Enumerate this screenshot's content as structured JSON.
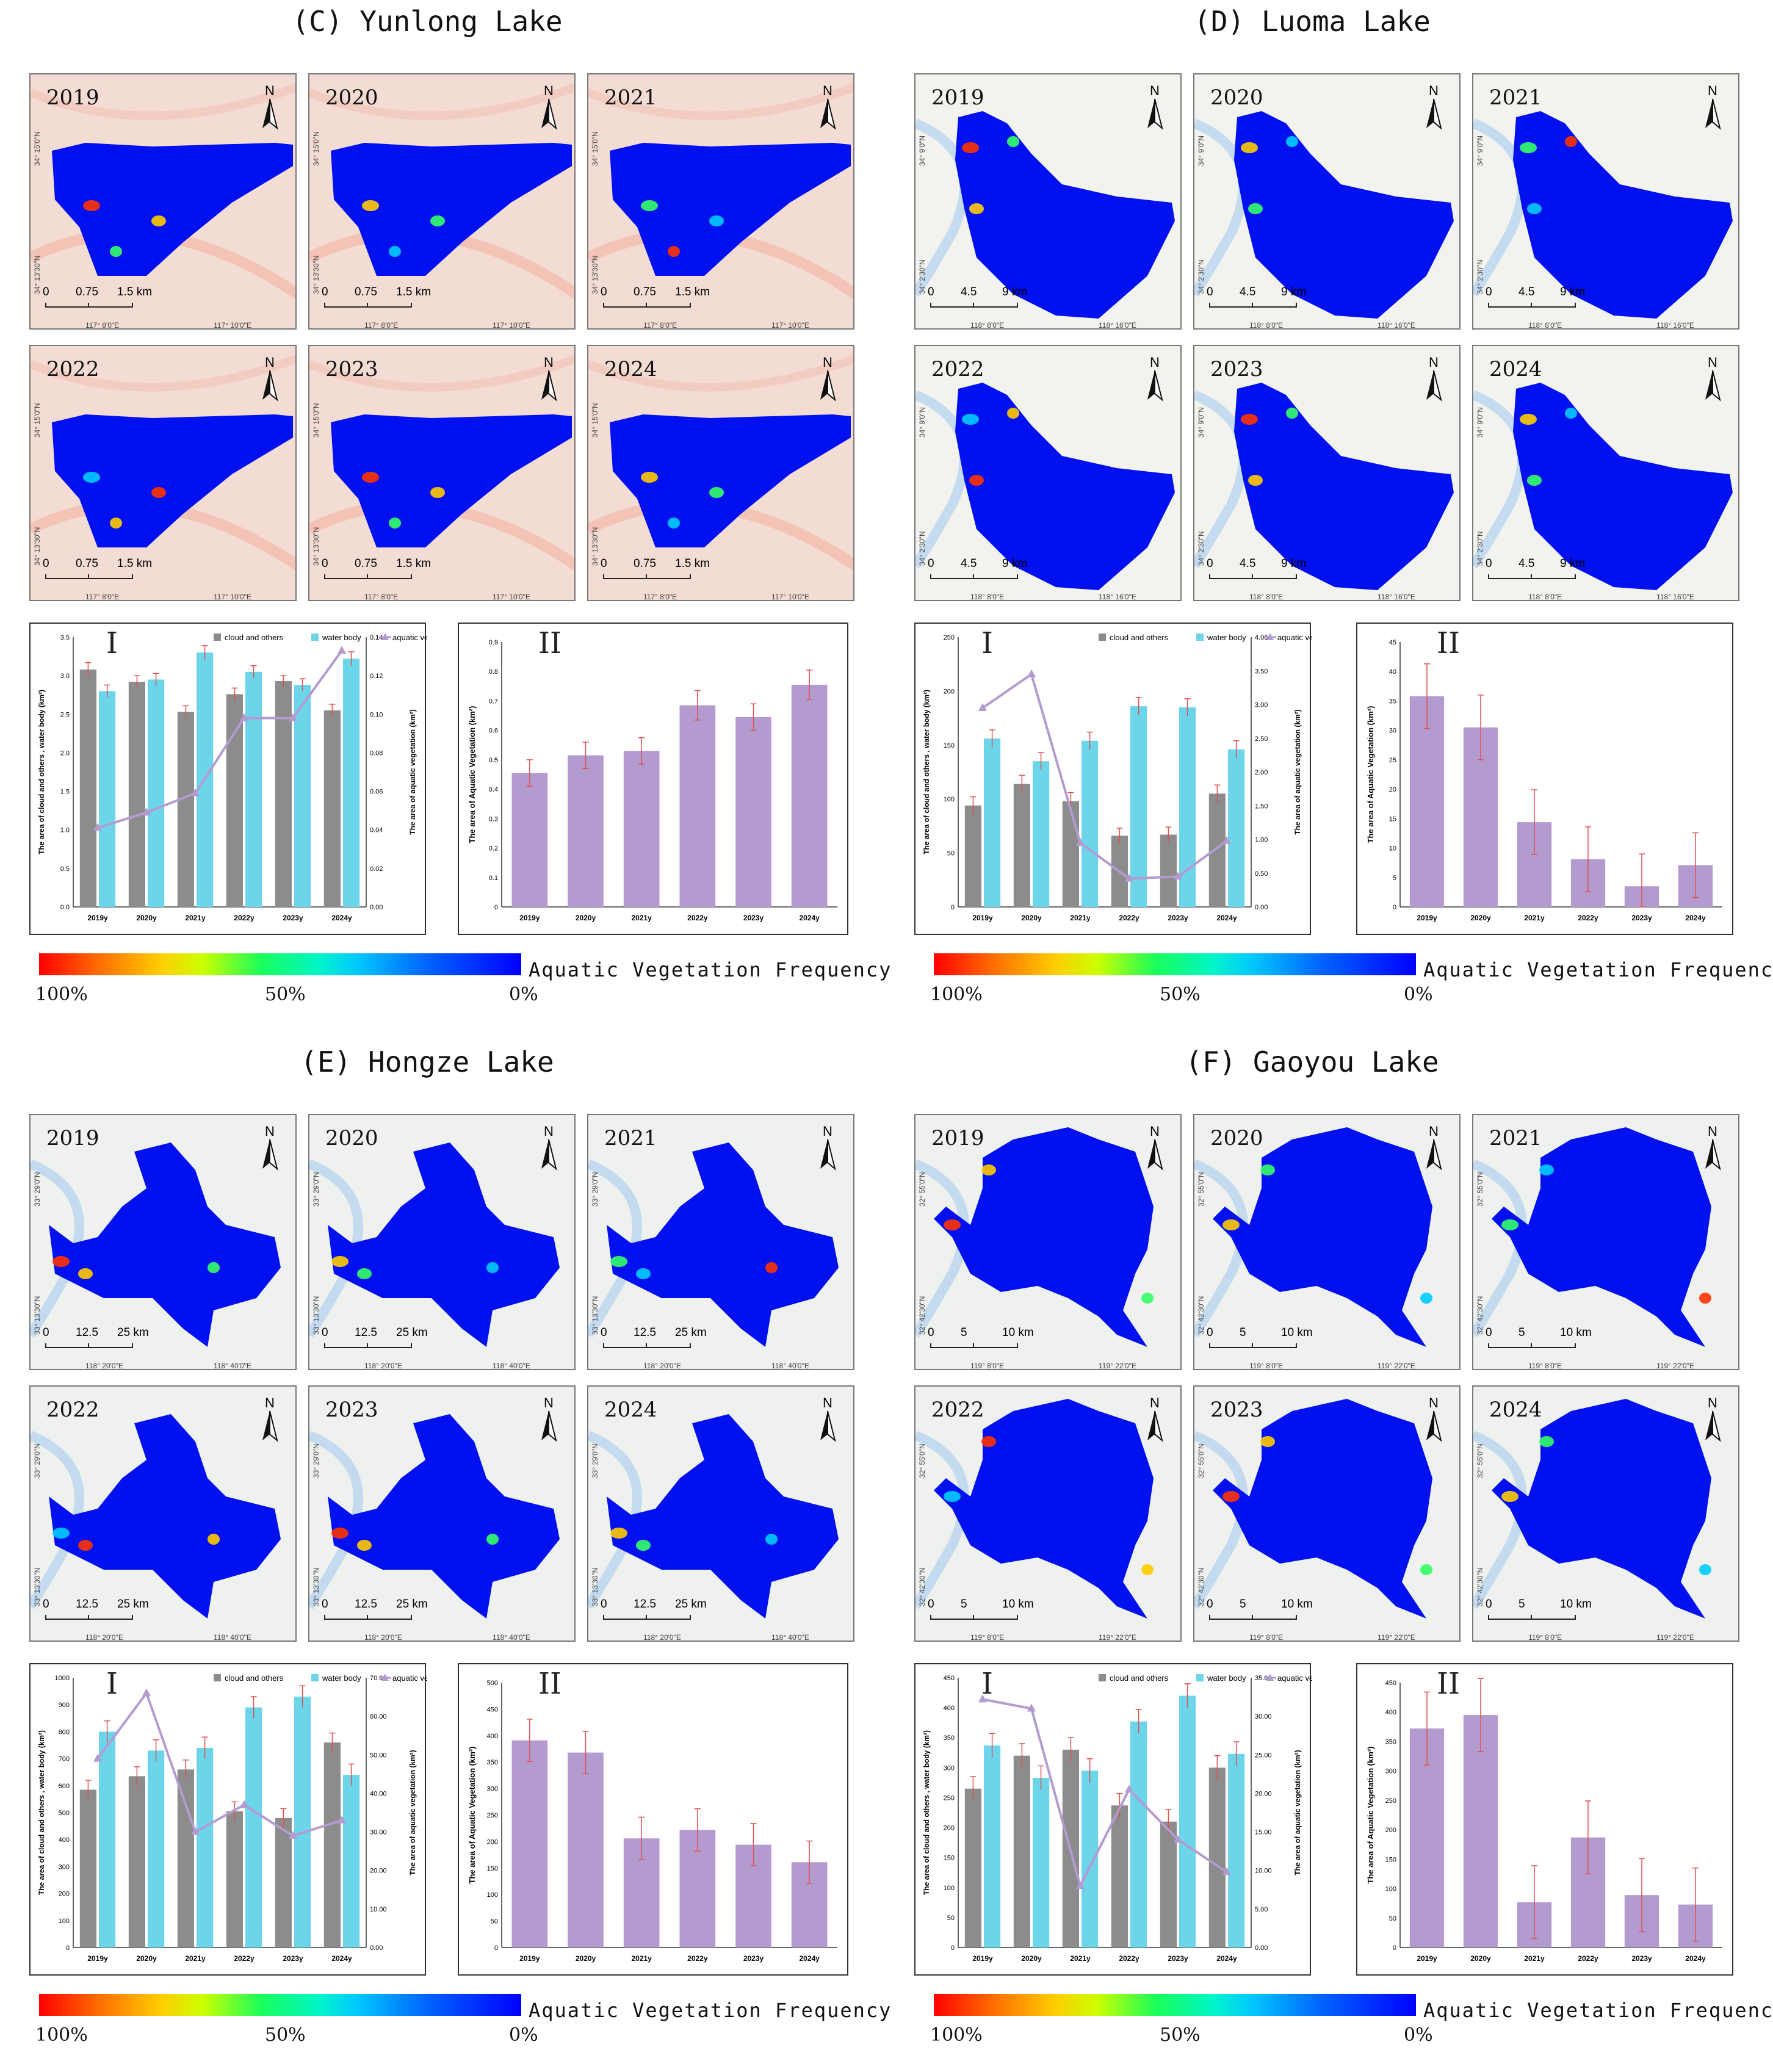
{
  "legend": {
    "gradient_label": "Aquatic Vegetation   Frequency",
    "p100": "100%",
    "p50": "50%",
    "p0": "0%",
    "colors": [
      "#ff0000",
      "#ffcc00",
      "#1aff5a",
      "#00c8ff",
      "#0000ff"
    ]
  },
  "colors": {
    "cloud": "#8c8c8c",
    "water": "#6cd5ea",
    "veg": "#b39bd0",
    "error": "#e05050",
    "lake": "#0010ee"
  },
  "chart_text": {
    "legend_cloud": "cloud and others",
    "legend_water": "water body",
    "legend_veg": "aquatic vegetation",
    "ylabel_left": "The area of cloud and others , water body (km²)",
    "ylabel_right": "The area of aquatic vegetation (km²)",
    "ylabel_II": "The area of Aquatic Vegetation (km²)",
    "roman_I": "I",
    "roman_II": "II"
  },
  "panels": [
    {
      "title": "(C)  Yunlong Lake",
      "years": [
        "2019",
        "2020",
        "2021",
        "2022",
        "2023",
        "2024"
      ],
      "north": "N",
      "scale": {
        "a": "0",
        "b": "0.75",
        "c": "1.5 km"
      },
      "coords": {
        "x1": "117° 8'0\"E",
        "x2": "117° 10'0\"E",
        "y1": "34° 15'0\"N",
        "y2": "34° 13'30\"N"
      }
    },
    {
      "title": "(D)  Luoma Lake",
      "years": [
        "2019",
        "2020",
        "2021",
        "2022",
        "2023",
        "2024"
      ],
      "north": "N",
      "scale": {
        "a": "0",
        "b": "4.5",
        "c": "9 km"
      },
      "coords": {
        "x1": "118° 8'0\"E",
        "x2": "118° 16'0\"E",
        "y1": "34° 9'0\"N",
        "y2": "34° 2'30\"N"
      }
    },
    {
      "title": "(E)   Hongze Lake",
      "years": [
        "2019",
        "2020",
        "2021",
        "2022",
        "2023",
        "2024"
      ],
      "north": "N",
      "scale": {
        "a": "0",
        "b": "12.5",
        "c": "25 km"
      },
      "coords": {
        "x1": "118° 20'0\"E",
        "x2": "118° 40'0\"E",
        "y1": "33° 29'0\"N",
        "y2": "33° 13'30\"N"
      }
    },
    {
      "title": "(F)  Gaoyou Lake",
      "years": [
        "2019",
        "2020",
        "2021",
        "2022",
        "2023",
        "2024"
      ],
      "north": "N",
      "scale": {
        "a": "0",
        "b": "5",
        "c": "10 km"
      },
      "coords": {
        "x1": "119° 8'0\"E",
        "x2": "119° 22'0\"E",
        "y1": "32° 55'0\"N",
        "y2": "32° 42'30\"N"
      }
    }
  ],
  "chart_data": [
    {
      "type": "bar",
      "lake": "Yunlong Lake",
      "title": "I",
      "categories": [
        "2019y",
        "2020y",
        "2021y",
        "2022y",
        "2023y",
        "2024y"
      ],
      "series": [
        {
          "name": "cloud and others",
          "axis": "left",
          "values": [
            3.08,
            2.92,
            2.53,
            2.76,
            2.93,
            2.55
          ],
          "err": [
            0.09,
            0.08,
            0.08,
            0.08,
            0.07,
            0.08
          ]
        },
        {
          "name": "water body",
          "axis": "left",
          "values": [
            2.8,
            2.95,
            3.3,
            3.05,
            2.88,
            3.22
          ],
          "err": [
            0.08,
            0.08,
            0.09,
            0.08,
            0.08,
            0.09
          ]
        },
        {
          "name": "aquatic vegetation",
          "type": "line",
          "axis": "right",
          "values": [
            0.041,
            0.049,
            0.059,
            0.098,
            0.098,
            0.133
          ]
        }
      ],
      "ylim_left": [
        0,
        3.5
      ],
      "yticks_left": [
        "0.0",
        "0.5",
        "1.0",
        "1.5",
        "2.0",
        "2.5",
        "3.0",
        "3.5"
      ],
      "ylim_right": [
        0,
        0.14
      ],
      "yticks_right": [
        "0.00",
        "0.02",
        "0.04",
        "0.06",
        "0.08",
        "0.10",
        "0.12",
        "0.14"
      ]
    },
    {
      "type": "bar",
      "lake": "Yunlong Lake",
      "title": "II",
      "categories": [
        "2019y",
        "2020y",
        "2021y",
        "2022y",
        "2023y",
        "2024y"
      ],
      "values": [
        0.455,
        0.515,
        0.53,
        0.685,
        0.645,
        0.755
      ],
      "err": [
        0.045,
        0.045,
        0.045,
        0.05,
        0.045,
        0.05
      ],
      "ylim": [
        0,
        0.9
      ],
      "yticks": [
        "0",
        "0.1",
        "0.2",
        "0.3",
        "0.4",
        "0.5",
        "0.6",
        "0.7",
        "0.8",
        "0.9"
      ]
    },
    {
      "type": "bar",
      "lake": "Luoma Lake",
      "title": "I",
      "categories": [
        "2019y",
        "2020y",
        "2021y",
        "2022y",
        "2023y",
        "2024y"
      ],
      "series": [
        {
          "name": "cloud and others",
          "axis": "left",
          "values": [
            94,
            114,
            98,
            66,
            67,
            105
          ],
          "err": [
            8,
            8,
            8,
            7,
            7,
            8
          ]
        },
        {
          "name": "water body",
          "axis": "left",
          "values": [
            156,
            135,
            154,
            186,
            185,
            146
          ],
          "err": [
            8,
            8,
            8,
            8,
            8,
            8
          ]
        },
        {
          "name": "aquatic vegetation",
          "type": "line",
          "axis": "right",
          "values": [
            2.95,
            3.45,
            0.95,
            0.42,
            0.45,
            0.98
          ]
        }
      ],
      "ylim_left": [
        0,
        250
      ],
      "yticks_left": [
        "0",
        "50",
        "100",
        "150",
        "200",
        "250"
      ],
      "ylim_right": [
        0,
        4
      ],
      "yticks_right": [
        "0.00",
        "0.50",
        "1.00",
        "1.50",
        "2.00",
        "2.50",
        "3.00",
        "3.50",
        "4.00"
      ]
    },
    {
      "type": "bar",
      "lake": "Luoma Lake",
      "title": "II",
      "categories": [
        "2019y",
        "2020y",
        "2021y",
        "2022y",
        "2023y",
        "2024y"
      ],
      "values": [
        35.8,
        30.5,
        14.4,
        8.1,
        3.5,
        7.1
      ],
      "err": [
        5.5,
        5.5,
        5.5,
        5.5,
        5.5,
        5.5
      ],
      "ylim": [
        0,
        45
      ],
      "yticks": [
        "0",
        "5",
        "10",
        "15",
        "20",
        "25",
        "30",
        "35",
        "40",
        "45"
      ]
    },
    {
      "type": "bar",
      "lake": "Hongze Lake",
      "title": "I",
      "categories": [
        "2019y",
        "2020y",
        "2021y",
        "2022y",
        "2023y",
        "2024y"
      ],
      "series": [
        {
          "name": "cloud and others",
          "axis": "left",
          "values": [
            585,
            635,
            660,
            505,
            480,
            760
          ],
          "err": [
            35,
            35,
            35,
            35,
            35,
            35
          ]
        },
        {
          "name": "water body",
          "axis": "left",
          "values": [
            800,
            730,
            740,
            890,
            930,
            640
          ],
          "err": [
            40,
            40,
            40,
            40,
            40,
            40
          ]
        },
        {
          "name": "aquatic vegetation",
          "type": "line",
          "axis": "right",
          "values": [
            49,
            66,
            30,
            37,
            29,
            33
          ]
        }
      ],
      "ylim_left": [
        0,
        1000
      ],
      "yticks_left": [
        "0",
        "100",
        "200",
        "300",
        "400",
        "500",
        "600",
        "700",
        "800",
        "900",
        "1000"
      ],
      "ylim_right": [
        0,
        70
      ],
      "yticks_right": [
        "0.00",
        "10.00",
        "20.00",
        "30.00",
        "40.00",
        "50.00",
        "60.00",
        "70.00"
      ]
    },
    {
      "type": "bar",
      "lake": "Hongze Lake",
      "title": "II",
      "categories": [
        "2019y",
        "2020y",
        "2021y",
        "2022y",
        "2023y",
        "2024y"
      ],
      "values": [
        391,
        368,
        206,
        222,
        194,
        161
      ],
      "err": [
        40,
        40,
        40,
        40,
        40,
        40
      ],
      "ylim": [
        0,
        500
      ],
      "yticks": [
        "0",
        "50",
        "100",
        "150",
        "200",
        "250",
        "300",
        "350",
        "400",
        "450",
        "500"
      ]
    },
    {
      "type": "bar",
      "lake": "Gaoyou Lake",
      "title": "I",
      "categories": [
        "2019y",
        "2020y",
        "2021y",
        "2022y",
        "2023y",
        "2024y"
      ],
      "series": [
        {
          "name": "cloud and others",
          "axis": "left",
          "values": [
            265,
            320,
            330,
            237,
            210,
            300
          ],
          "err": [
            20,
            20,
            20,
            20,
            20,
            20
          ]
        },
        {
          "name": "water body",
          "axis": "left",
          "values": [
            337,
            283,
            295,
            377,
            420,
            323
          ],
          "err": [
            20,
            20,
            20,
            20,
            20,
            20
          ]
        },
        {
          "name": "aquatic vegetation",
          "type": "line",
          "axis": "right",
          "values": [
            32.2,
            31.0,
            8.0,
            20.5,
            14.0,
            9.8
          ]
        }
      ],
      "ylim_left": [
        0,
        450
      ],
      "yticks_left": [
        "0",
        "50",
        "100",
        "150",
        "200",
        "250",
        "300",
        "350",
        "400",
        "450"
      ],
      "ylim_right": [
        0,
        35
      ],
      "yticks_right": [
        "0.00",
        "5.00",
        "10.00",
        "15.00",
        "20.00",
        "25.00",
        "30.00",
        "35.00"
      ]
    },
    {
      "type": "bar",
      "lake": "Gaoyou Lake",
      "title": "II",
      "categories": [
        "2019y",
        "2020y",
        "2021y",
        "2022y",
        "2023y",
        "2024y"
      ],
      "values": [
        372,
        395,
        77,
        187,
        89,
        73
      ],
      "err": [
        62,
        62,
        62,
        62,
        62,
        62
      ],
      "ylim": [
        0,
        450
      ],
      "yticks": [
        "0",
        "50",
        "100",
        "150",
        "200",
        "250",
        "300",
        "350",
        "400",
        "450"
      ]
    }
  ]
}
